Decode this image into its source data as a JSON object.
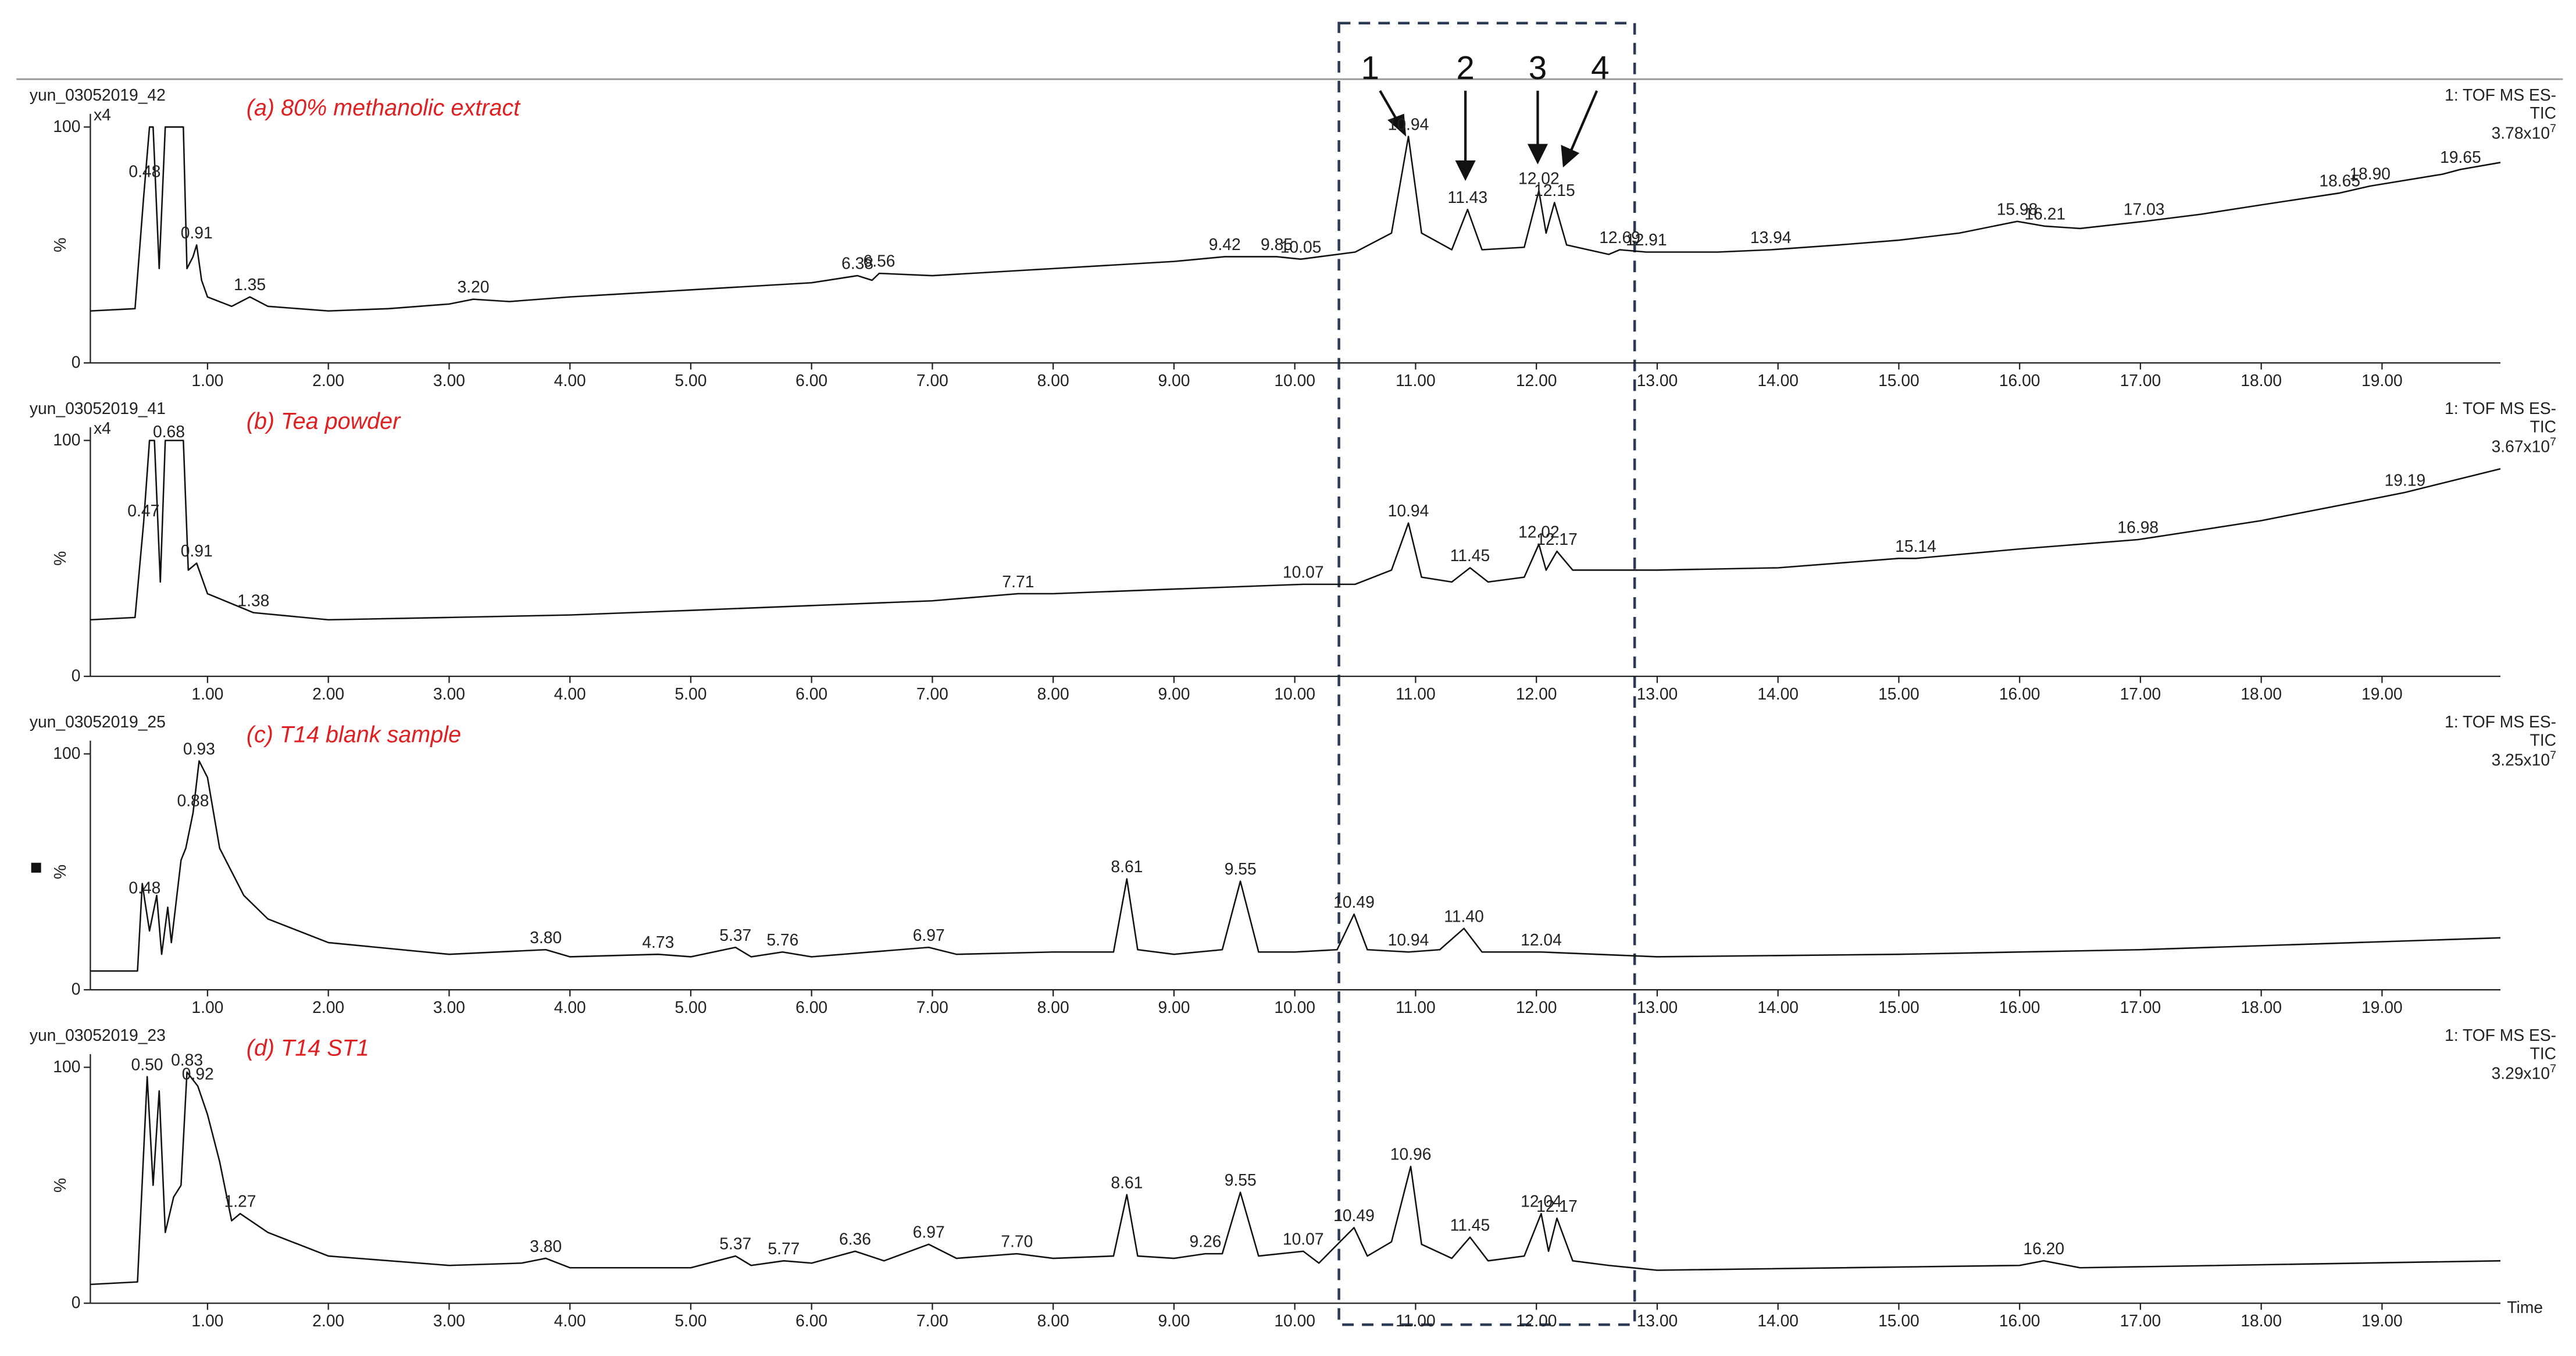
{
  "box_labels": [
    "1",
    "2",
    "3",
    "4"
  ],
  "chart_data": [
    {
      "type": "line",
      "sample": "yun_03052019_42",
      "title": "(a) 80% methanolic extract",
      "detector": "1: TOF MS ES-",
      "trace": "TIC",
      "scale_base": "3.78x10",
      "scale_exp": "7",
      "zoom": "x4",
      "y_label": "%",
      "xlim": [
        0.03,
        19.98
      ],
      "ylim": [
        0,
        100
      ],
      "yticks": [
        0,
        100
      ],
      "xticks": [
        {
          "value": 1,
          "label": "1.00"
        },
        {
          "value": 2,
          "label": "2.00"
        },
        {
          "value": 3,
          "label": "3.00"
        },
        {
          "value": 4,
          "label": "4.00"
        },
        {
          "value": 5,
          "label": "5.00"
        },
        {
          "value": 6,
          "label": "6.00"
        },
        {
          "value": 7,
          "label": "7.00"
        },
        {
          "value": 8,
          "label": "8.00"
        },
        {
          "value": 9,
          "label": "9.00"
        },
        {
          "value": 10,
          "label": "10.00"
        },
        {
          "value": 11,
          "label": "11.00"
        },
        {
          "value": 12,
          "label": "12.00"
        },
        {
          "value": 13,
          "label": "13.00"
        },
        {
          "value": 14,
          "label": "14.00"
        },
        {
          "value": 15,
          "label": "15.00"
        },
        {
          "value": 16,
          "label": "16.00"
        },
        {
          "value": 17,
          "label": "17.00"
        },
        {
          "value": 18,
          "label": "18.00"
        },
        {
          "value": 19,
          "label": "19.00"
        }
      ],
      "x": [
        0.03,
        0.4,
        0.47,
        0.52,
        0.55,
        0.6,
        0.65,
        0.8,
        0.83,
        0.88,
        0.91,
        0.95,
        1.0,
        1.2,
        1.35,
        1.5,
        2.0,
        2.5,
        3.0,
        3.2,
        3.5,
        4.0,
        5.0,
        6.0,
        6.38,
        6.5,
        6.56,
        7.0,
        8.0,
        9.0,
        9.42,
        9.85,
        10.05,
        10.5,
        10.8,
        10.94,
        11.05,
        11.3,
        11.43,
        11.55,
        11.9,
        12.02,
        12.08,
        12.15,
        12.25,
        12.6,
        12.69,
        12.91,
        13.5,
        13.94,
        14.5,
        15.0,
        15.5,
        15.98,
        16.21,
        16.5,
        17.03,
        17.5,
        18.0,
        18.65,
        18.9,
        19.5,
        19.65,
        19.98
      ],
      "values": [
        22,
        23,
        70,
        100,
        100,
        40,
        100,
        100,
        40,
        45,
        50,
        35,
        28,
        24,
        28,
        24,
        22,
        23,
        25,
        27,
        26,
        28,
        31,
        34,
        37,
        35,
        38,
        37,
        40,
        43,
        45,
        45,
        44,
        47,
        55,
        96,
        55,
        48,
        65,
        48,
        49,
        73,
        55,
        68,
        50,
        46,
        48,
        47,
        47,
        48,
        50,
        52,
        55,
        60,
        58,
        57,
        60,
        63,
        67,
        72,
        75,
        80,
        82,
        85
      ],
      "peaks": [
        {
          "x": 0.48,
          "label": "0.48"
        },
        {
          "x": 0.91,
          "label": "0.91"
        },
        {
          "x": 1.35,
          "label": "1.35"
        },
        {
          "x": 3.2,
          "label": "3.20"
        },
        {
          "x": 6.38,
          "label": "6.38"
        },
        {
          "x": 6.56,
          "label": "6.56"
        },
        {
          "x": 9.42,
          "label": "9.42"
        },
        {
          "x": 9.85,
          "label": "9.85"
        },
        {
          "x": 10.05,
          "label": "10.05"
        },
        {
          "x": 10.94,
          "label": "10.94"
        },
        {
          "x": 11.43,
          "label": "11.43"
        },
        {
          "x": 12.02,
          "label": "12.02"
        },
        {
          "x": 12.15,
          "label": "12.15"
        },
        {
          "x": 12.69,
          "label": "12.69"
        },
        {
          "x": 12.91,
          "label": "12.91"
        },
        {
          "x": 13.94,
          "label": "13.94"
        },
        {
          "x": 15.98,
          "label": "15.98"
        },
        {
          "x": 16.21,
          "label": "16.21"
        },
        {
          "x": 17.03,
          "label": "17.03"
        },
        {
          "x": 18.65,
          "label": "18.65"
        },
        {
          "x": 18.9,
          "label": "18.90"
        },
        {
          "x": 19.65,
          "label": "19.65"
        }
      ]
    },
    {
      "type": "line",
      "sample": "yun_03052019_41",
      "title": "(b) Tea powder",
      "detector": "1: TOF MS ES-",
      "trace": "TIC",
      "scale_base": "3.67x10",
      "scale_exp": "7",
      "zoom": "x4",
      "y_label": "%",
      "xlim": [
        0.03,
        19.98
      ],
      "ylim": [
        0,
        100
      ],
      "yticks": [
        0,
        100
      ],
      "xticks": [
        {
          "value": 1,
          "label": "1.00"
        },
        {
          "value": 2,
          "label": "2.00"
        },
        {
          "value": 3,
          "label": "3.00"
        },
        {
          "value": 4,
          "label": "4.00"
        },
        {
          "value": 5,
          "label": "5.00"
        },
        {
          "value": 6,
          "label": "6.00"
        },
        {
          "value": 7,
          "label": "7.00"
        },
        {
          "value": 8,
          "label": "8.00"
        },
        {
          "value": 9,
          "label": "9.00"
        },
        {
          "value": 10,
          "label": "10.00"
        },
        {
          "value": 11,
          "label": "11.00"
        },
        {
          "value": 12,
          "label": "12.00"
        },
        {
          "value": 13,
          "label": "13.00"
        },
        {
          "value": 14,
          "label": "14.00"
        },
        {
          "value": 15,
          "label": "15.00"
        },
        {
          "value": 16,
          "label": "16.00"
        },
        {
          "value": 17,
          "label": "17.00"
        },
        {
          "value": 18,
          "label": "18.00"
        },
        {
          "value": 19,
          "label": "19.00"
        }
      ],
      "x": [
        0.03,
        0.4,
        0.47,
        0.52,
        0.56,
        0.61,
        0.65,
        0.8,
        0.84,
        0.91,
        1.0,
        1.38,
        2.0,
        3.0,
        4.0,
        5.0,
        6.0,
        7.0,
        7.71,
        8.0,
        9.0,
        10.07,
        10.5,
        10.8,
        10.94,
        11.05,
        11.3,
        11.45,
        11.6,
        11.9,
        12.02,
        12.08,
        12.17,
        12.3,
        13.0,
        14.0,
        15.0,
        15.14,
        16.0,
        16.98,
        17.5,
        18.0,
        19.0,
        19.19,
        19.98
      ],
      "values": [
        24,
        25,
        65,
        100,
        100,
        40,
        100,
        100,
        45,
        48,
        35,
        27,
        24,
        25,
        26,
        28,
        30,
        32,
        35,
        35,
        37,
        39,
        39,
        45,
        65,
        42,
        40,
        46,
        40,
        42,
        56,
        45,
        53,
        45,
        45,
        46,
        50,
        50,
        54,
        58,
        62,
        66,
        76,
        78,
        88
      ],
      "peaks": [
        {
          "x": 0.47,
          "label": "0.47"
        },
        {
          "x": 0.68,
          "label": "0.68"
        },
        {
          "x": 0.91,
          "label": "0.91"
        },
        {
          "x": 1.38,
          "label": "1.38"
        },
        {
          "x": 7.71,
          "label": "7.71"
        },
        {
          "x": 10.07,
          "label": "10.07"
        },
        {
          "x": 10.94,
          "label": "10.94"
        },
        {
          "x": 11.45,
          "label": "11.45"
        },
        {
          "x": 12.02,
          "label": "12.02"
        },
        {
          "x": 12.17,
          "label": "12.17"
        },
        {
          "x": 15.14,
          "label": "15.14"
        },
        {
          "x": 16.98,
          "label": "16.98"
        },
        {
          "x": 19.19,
          "label": "19.19"
        }
      ]
    },
    {
      "type": "line",
      "sample": "yun_03052019_25",
      "title": "(c) T14 blank sample",
      "detector": "1: TOF MS ES-",
      "trace": "TIC",
      "scale_base": "3.25x10",
      "scale_exp": "7",
      "y_label": "%",
      "xlim": [
        0.03,
        19.98
      ],
      "ylim": [
        0,
        100
      ],
      "yticks": [
        0,
        100
      ],
      "xticks": [
        {
          "value": 1,
          "label": "1.00"
        },
        {
          "value": 2,
          "label": "2.00"
        },
        {
          "value": 3,
          "label": "3.00"
        },
        {
          "value": 4,
          "label": "4.00"
        },
        {
          "value": 5,
          "label": "5.00"
        },
        {
          "value": 6,
          "label": "6.00"
        },
        {
          "value": 7,
          "label": "7.00"
        },
        {
          "value": 8,
          "label": "8.00"
        },
        {
          "value": 9,
          "label": "9.00"
        },
        {
          "value": 10,
          "label": "10.00"
        },
        {
          "value": 11,
          "label": "11.00"
        },
        {
          "value": 12,
          "label": "12.00"
        },
        {
          "value": 13,
          "label": "13.00"
        },
        {
          "value": 14,
          "label": "14.00"
        },
        {
          "value": 15,
          "label": "15.00"
        },
        {
          "value": 16,
          "label": "16.00"
        },
        {
          "value": 17,
          "label": "17.00"
        },
        {
          "value": 18,
          "label": "18.00"
        },
        {
          "value": 19,
          "label": "19.00"
        }
      ],
      "x": [
        0.03,
        0.42,
        0.46,
        0.48,
        0.52,
        0.58,
        0.62,
        0.67,
        0.7,
        0.78,
        0.82,
        0.88,
        0.93,
        1.0,
        1.1,
        1.3,
        1.5,
        2.0,
        3.0,
        3.8,
        4.0,
        4.73,
        5.0,
        5.37,
        5.5,
        5.76,
        6.0,
        6.97,
        7.2,
        8.0,
        8.5,
        8.61,
        8.7,
        9.0,
        9.4,
        9.55,
        9.7,
        10.0,
        10.35,
        10.49,
        10.6,
        10.94,
        11.2,
        11.4,
        11.55,
        12.04,
        12.5,
        13.0,
        15.0,
        17.0,
        19.98
      ],
      "values": [
        8,
        8,
        45,
        38,
        25,
        40,
        15,
        35,
        20,
        55,
        60,
        75,
        97,
        90,
        60,
        40,
        30,
        20,
        15,
        17,
        14,
        15,
        14,
        18,
        14,
        16,
        14,
        18,
        15,
        16,
        16,
        47,
        17,
        15,
        17,
        46,
        16,
        16,
        17,
        32,
        17,
        16,
        17,
        26,
        16,
        16,
        15,
        14,
        15,
        17,
        22
      ],
      "peaks": [
        {
          "x": 0.48,
          "label": "0.48"
        },
        {
          "x": 0.88,
          "label": "0.88"
        },
        {
          "x": 0.93,
          "label": "0.93"
        },
        {
          "x": 3.8,
          "label": "3.80"
        },
        {
          "x": 4.73,
          "label": "4.73"
        },
        {
          "x": 5.37,
          "label": "5.37"
        },
        {
          "x": 5.76,
          "label": "5.76"
        },
        {
          "x": 6.97,
          "label": "6.97"
        },
        {
          "x": 8.61,
          "label": "8.61"
        },
        {
          "x": 9.55,
          "label": "9.55"
        },
        {
          "x": 10.49,
          "label": "10.49"
        },
        {
          "x": 10.94,
          "label": "10.94"
        },
        {
          "x": 11.4,
          "label": "11.40"
        },
        {
          "x": 12.04,
          "label": "12.04"
        }
      ]
    },
    {
      "type": "line",
      "sample": "yun_03052019_23",
      "title": "(d) T14 ST1",
      "detector": "1: TOF MS ES-",
      "trace": "TIC",
      "scale_base": "3.29x10",
      "scale_exp": "7",
      "y_label": "%",
      "x_label": "Time",
      "xlim": [
        0.03,
        19.98
      ],
      "ylim": [
        0,
        100
      ],
      "yticks": [
        0,
        100
      ],
      "xticks": [
        {
          "value": 1,
          "label": "1.00"
        },
        {
          "value": 2,
          "label": "2.00"
        },
        {
          "value": 3,
          "label": "3.00"
        },
        {
          "value": 4,
          "label": "4.00"
        },
        {
          "value": 5,
          "label": "5.00"
        },
        {
          "value": 6,
          "label": "6.00"
        },
        {
          "value": 7,
          "label": "7.00"
        },
        {
          "value": 8,
          "label": "8.00"
        },
        {
          "value": 9,
          "label": "9.00"
        },
        {
          "value": 10,
          "label": "10.00"
        },
        {
          "value": 11,
          "label": "11.00"
        },
        {
          "value": 12,
          "label": "12.00"
        },
        {
          "value": 13,
          "label": "13.00"
        },
        {
          "value": 14,
          "label": "14.00"
        },
        {
          "value": 15,
          "label": "15.00"
        },
        {
          "value": 16,
          "label": "16.00"
        },
        {
          "value": 17,
          "label": "17.00"
        },
        {
          "value": 18,
          "label": "18.00"
        },
        {
          "value": 19,
          "label": "19.00"
        }
      ],
      "x": [
        0.03,
        0.42,
        0.5,
        0.55,
        0.6,
        0.65,
        0.72,
        0.78,
        0.83,
        0.92,
        1.0,
        1.1,
        1.2,
        1.27,
        1.5,
        2.0,
        3.0,
        3.6,
        3.8,
        4.0,
        5.0,
        5.37,
        5.5,
        5.77,
        6.0,
        6.36,
        6.6,
        6.97,
        7.2,
        7.7,
        8.0,
        8.5,
        8.61,
        8.7,
        9.0,
        9.26,
        9.4,
        9.55,
        9.7,
        10.07,
        10.2,
        10.49,
        10.6,
        10.8,
        10.96,
        11.05,
        11.3,
        11.45,
        11.6,
        11.9,
        12.04,
        12.1,
        12.17,
        12.3,
        12.6,
        13.0,
        16.0,
        16.2,
        16.5,
        19.98
      ],
      "values": [
        8,
        9,
        96,
        50,
        90,
        30,
        45,
        50,
        98,
        92,
        80,
        60,
        35,
        38,
        30,
        20,
        16,
        17,
        19,
        15,
        15,
        20,
        16,
        18,
        17,
        22,
        18,
        25,
        19,
        21,
        19,
        20,
        46,
        20,
        19,
        21,
        21,
        47,
        20,
        22,
        17,
        32,
        20,
        26,
        58,
        25,
        19,
        28,
        18,
        20,
        38,
        22,
        36,
        18,
        16,
        14,
        16,
        18,
        15,
        18
      ],
      "peaks": [
        {
          "x": 0.5,
          "label": "0.50"
        },
        {
          "x": 0.83,
          "label": "0.83"
        },
        {
          "x": 0.92,
          "label": "0.92"
        },
        {
          "x": 1.27,
          "label": "1.27"
        },
        {
          "x": 3.8,
          "label": "3.80"
        },
        {
          "x": 5.37,
          "label": "5.37"
        },
        {
          "x": 5.77,
          "label": "5.77"
        },
        {
          "x": 6.36,
          "label": "6.36"
        },
        {
          "x": 6.97,
          "label": "6.97"
        },
        {
          "x": 7.7,
          "label": "7.70"
        },
        {
          "x": 8.61,
          "label": "8.61"
        },
        {
          "x": 9.26,
          "label": "9.26"
        },
        {
          "x": 9.55,
          "label": "9.55"
        },
        {
          "x": 10.07,
          "label": "10.07"
        },
        {
          "x": 10.49,
          "label": "10.49"
        },
        {
          "x": 10.96,
          "label": "10.96"
        },
        {
          "x": 11.45,
          "label": "11.45"
        },
        {
          "x": 12.04,
          "label": "12.04"
        },
        {
          "x": 12.17,
          "label": "12.17"
        },
        {
          "x": 16.2,
          "label": "16.20"
        }
      ]
    }
  ]
}
